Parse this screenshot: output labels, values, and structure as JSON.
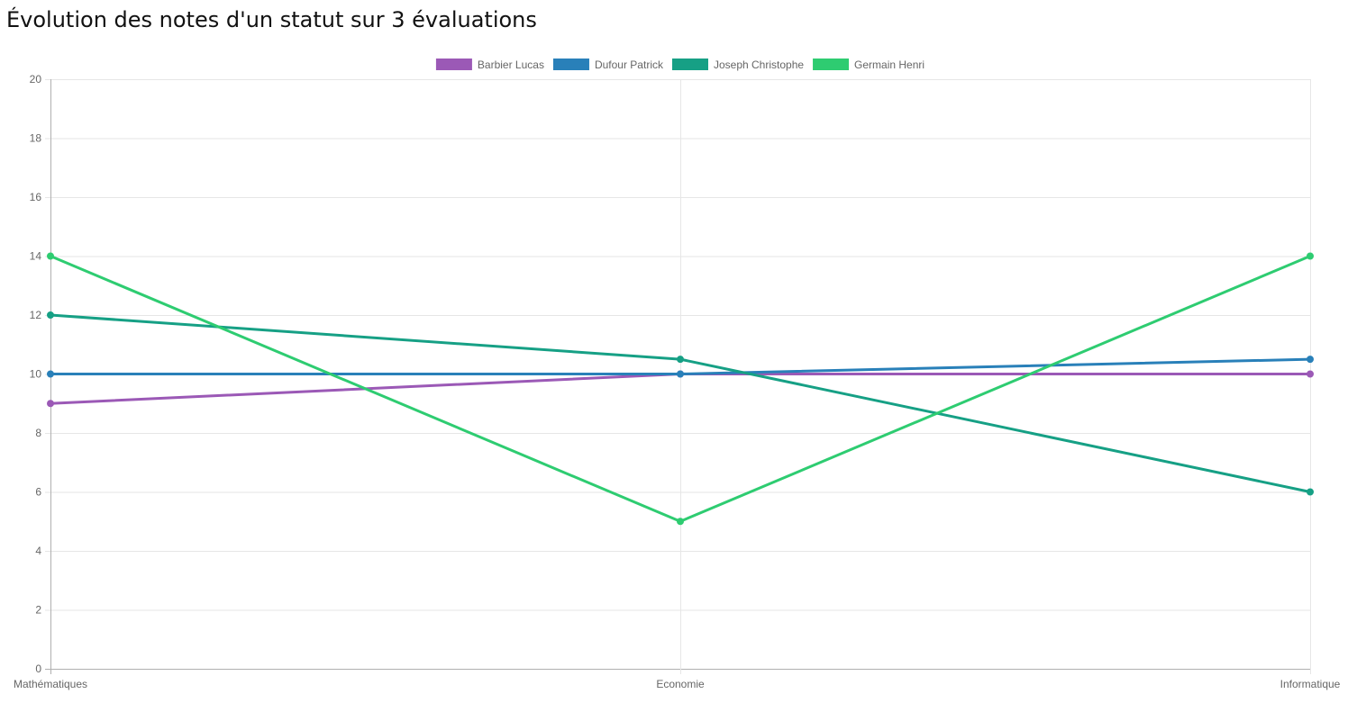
{
  "title": "Évolution des notes d'un statut sur 3 évaluations",
  "chart_data": {
    "type": "line",
    "title": "Évolution des notes d'un statut sur 3 évaluations",
    "categories": [
      "Mathématiques",
      "Economie",
      "Informatique"
    ],
    "series": [
      {
        "name": "Barbier Lucas",
        "color": "#9b59b6",
        "values": [
          9,
          10,
          10
        ]
      },
      {
        "name": "Dufour Patrick",
        "color": "#2980b9",
        "values": [
          10,
          10,
          10.5
        ]
      },
      {
        "name": "Joseph Christophe",
        "color": "#16a085",
        "values": [
          12,
          10.5,
          6
        ]
      },
      {
        "name": "Germain Henri",
        "color": "#2ecc71",
        "values": [
          14,
          5,
          14
        ]
      }
    ],
    "yticks": [
      0,
      2,
      4,
      6,
      8,
      10,
      12,
      14,
      16,
      18,
      20
    ],
    "ylim": [
      0,
      20
    ],
    "grid": true,
    "legend": "top-center"
  }
}
